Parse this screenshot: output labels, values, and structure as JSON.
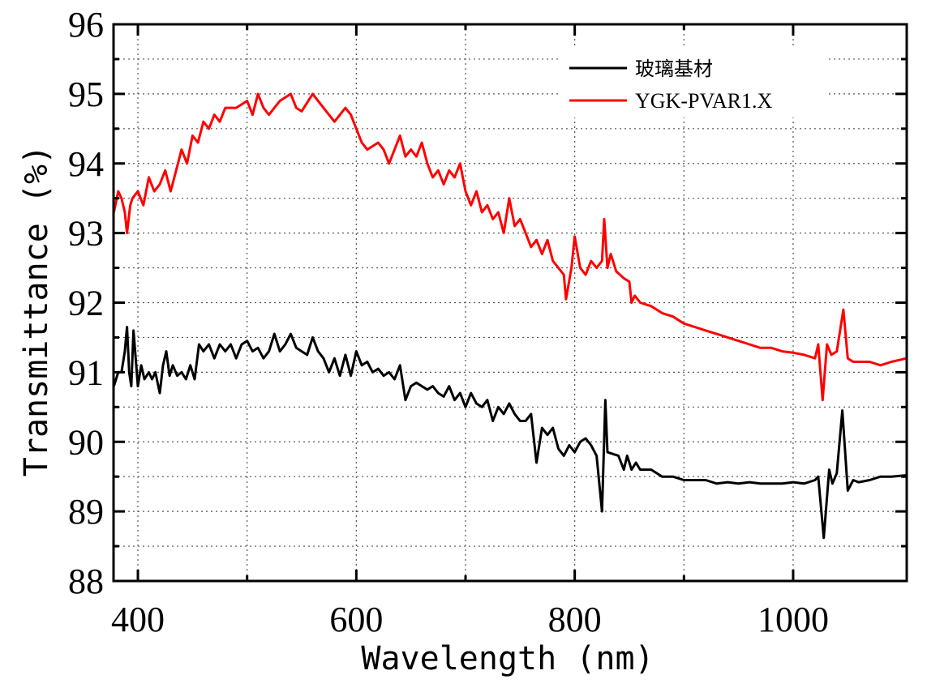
{
  "chart_data": {
    "type": "line",
    "title": "",
    "xlabel": "Wavelength (nm)",
    "ylabel": "Transmittance (%)",
    "xlim": [
      377.7,
      1104
    ],
    "ylim": [
      88,
      96
    ],
    "x_ticks": [
      400,
      600,
      800,
      1000
    ],
    "x_minor_ticks": [
      500,
      700,
      900
    ],
    "y_ticks": [
      88,
      89,
      90,
      91,
      92,
      93,
      94,
      95,
      96
    ],
    "y_minor_ticks": [
      88.5,
      89.5,
      90.5,
      91.5,
      92.5,
      93.5,
      94.5,
      95.5
    ],
    "grid": true,
    "legend_position": "top-right",
    "series": [
      {
        "name": "玻璃基材",
        "color": "#000000",
        "x": [
          378,
          382,
          385,
          388,
          390,
          392,
          394,
          396,
          398,
          400,
          403,
          406,
          410,
          413,
          416,
          420,
          423,
          426,
          429,
          432,
          436,
          440,
          444,
          448,
          452,
          456,
          460,
          465,
          470,
          475,
          480,
          485,
          490,
          495,
          500,
          505,
          510,
          515,
          520,
          525,
          530,
          535,
          540,
          545,
          550,
          555,
          560,
          565,
          570,
          575,
          580,
          585,
          590,
          595,
          600,
          605,
          610,
          615,
          620,
          625,
          630,
          635,
          640,
          645,
          650,
          655,
          660,
          665,
          670,
          675,
          680,
          685,
          690,
          695,
          700,
          705,
          710,
          715,
          720,
          725,
          730,
          735,
          740,
          745,
          750,
          755,
          760,
          765,
          770,
          775,
          780,
          785,
          790,
          795,
          800,
          805,
          810,
          815,
          820,
          825,
          828,
          830,
          840,
          845,
          848,
          852,
          856,
          860,
          870,
          880,
          890,
          900,
          910,
          920,
          930,
          940,
          950,
          960,
          970,
          980,
          990,
          1000,
          1010,
          1020,
          1023,
          1028,
          1033,
          1036,
          1040,
          1045,
          1050,
          1055,
          1060,
          1070,
          1080,
          1090,
          1104
        ],
        "y": [
          90.8,
          91.0,
          91.0,
          91.3,
          91.65,
          91.0,
          90.8,
          91.6,
          91.2,
          90.8,
          91.1,
          90.9,
          91.0,
          90.9,
          91.0,
          90.7,
          91.1,
          91.3,
          90.95,
          91.1,
          90.95,
          91.0,
          90.9,
          91.1,
          90.9,
          91.4,
          91.3,
          91.4,
          91.2,
          91.4,
          91.3,
          91.4,
          91.2,
          91.4,
          91.45,
          91.3,
          91.35,
          91.2,
          91.3,
          91.55,
          91.3,
          91.4,
          91.55,
          91.35,
          91.3,
          91.25,
          91.5,
          91.3,
          91.2,
          91.0,
          91.2,
          90.95,
          91.25,
          90.95,
          91.3,
          91.1,
          91.15,
          91.0,
          91.05,
          90.95,
          91.0,
          90.9,
          91.1,
          90.6,
          90.8,
          90.85,
          90.8,
          90.75,
          90.8,
          90.7,
          90.65,
          90.8,
          90.6,
          90.7,
          90.5,
          90.7,
          90.55,
          90.5,
          90.6,
          90.3,
          90.5,
          90.4,
          90.55,
          90.4,
          90.3,
          90.3,
          90.4,
          89.7,
          90.2,
          90.1,
          90.2,
          89.9,
          89.8,
          89.95,
          89.85,
          90.0,
          90.05,
          89.95,
          89.8,
          89.0,
          90.6,
          89.85,
          89.8,
          89.6,
          89.8,
          89.6,
          89.7,
          89.6,
          89.6,
          89.5,
          89.5,
          89.45,
          89.45,
          89.45,
          89.4,
          89.42,
          89.4,
          89.42,
          89.4,
          89.4,
          89.4,
          89.42,
          89.4,
          89.45,
          89.5,
          88.62,
          89.6,
          89.4,
          89.55,
          90.45,
          89.3,
          89.45,
          89.42,
          89.45,
          89.5,
          89.5,
          89.52
        ]
      },
      {
        "name": "YGK-PVAR1.X",
        "color": "#ff0000",
        "x": [
          378,
          382,
          385,
          388,
          390,
          393,
          395,
          400,
          405,
          410,
          415,
          420,
          425,
          430,
          435,
          440,
          445,
          450,
          455,
          460,
          465,
          470,
          475,
          480,
          490,
          500,
          505,
          510,
          515,
          520,
          530,
          540,
          545,
          550,
          560,
          570,
          580,
          590,
          595,
          600,
          605,
          610,
          620,
          625,
          630,
          640,
          645,
          650,
          655,
          660,
          665,
          670,
          675,
          680,
          685,
          690,
          695,
          700,
          705,
          710,
          715,
          720,
          725,
          730,
          735,
          740,
          745,
          750,
          755,
          760,
          765,
          770,
          775,
          780,
          790,
          792,
          797,
          800,
          805,
          810,
          815,
          820,
          825,
          827,
          830,
          833,
          838,
          845,
          850,
          852,
          855,
          860,
          870,
          880,
          890,
          900,
          910,
          920,
          930,
          940,
          950,
          960,
          970,
          980,
          990,
          1000,
          1010,
          1020,
          1023,
          1027,
          1031,
          1035,
          1040,
          1046,
          1050,
          1055,
          1060,
          1070,
          1080,
          1090,
          1104
        ],
        "y": [
          93.3,
          93.6,
          93.5,
          93.3,
          93.0,
          93.4,
          93.5,
          93.6,
          93.4,
          93.8,
          93.6,
          93.7,
          93.9,
          93.6,
          93.9,
          94.2,
          94.0,
          94.4,
          94.3,
          94.6,
          94.5,
          94.7,
          94.6,
          94.8,
          94.8,
          94.9,
          94.7,
          95.0,
          94.8,
          94.7,
          94.9,
          95.0,
          94.8,
          94.75,
          95.0,
          94.8,
          94.6,
          94.8,
          94.7,
          94.5,
          94.3,
          94.2,
          94.3,
          94.2,
          94.0,
          94.4,
          94.1,
          94.2,
          94.1,
          94.3,
          94.0,
          93.8,
          93.9,
          93.7,
          93.9,
          93.8,
          94.0,
          93.6,
          93.4,
          93.6,
          93.3,
          93.4,
          93.2,
          93.3,
          93.0,
          93.5,
          93.1,
          93.2,
          93.0,
          92.8,
          92.9,
          92.7,
          92.9,
          92.6,
          92.4,
          92.05,
          92.5,
          92.95,
          92.5,
          92.4,
          92.6,
          92.5,
          92.6,
          93.2,
          92.5,
          92.7,
          92.45,
          92.35,
          92.3,
          92.0,
          92.1,
          92.0,
          91.95,
          91.85,
          91.8,
          91.7,
          91.65,
          91.6,
          91.55,
          91.5,
          91.45,
          91.4,
          91.35,
          91.35,
          91.3,
          91.28,
          91.25,
          91.2,
          91.4,
          90.6,
          91.4,
          91.25,
          91.3,
          91.9,
          91.2,
          91.15,
          91.15,
          91.15,
          91.1,
          91.15,
          91.2
        ]
      }
    ]
  }
}
